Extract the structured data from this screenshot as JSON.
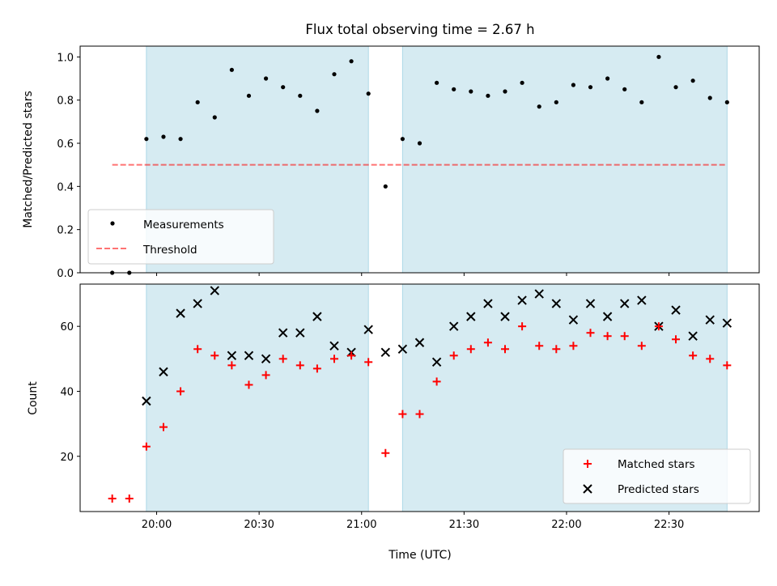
{
  "chart_data": {
    "type": "scatter",
    "title": "Flux total observing time = 2.67 h",
    "xlabel": "Time (UTC)",
    "x_tick_labels": [
      "20:00",
      "20:30",
      "21:00",
      "21:30",
      "22:00",
      "22:30"
    ],
    "times": [
      "19:47",
      "19:52",
      "19:57",
      "20:02",
      "20:07",
      "20:12",
      "20:17",
      "20:22",
      "20:27",
      "20:32",
      "20:37",
      "20:42",
      "20:47",
      "20:52",
      "20:57",
      "21:02",
      "21:07",
      "21:12",
      "21:17",
      "21:22",
      "21:27",
      "21:32",
      "21:37",
      "21:42",
      "21:47",
      "21:52",
      "21:57",
      "22:02",
      "22:07",
      "22:12",
      "22:17",
      "22:22",
      "22:27",
      "22:32",
      "22:37",
      "22:42",
      "22:47"
    ],
    "shaded_intervals": [
      [
        "19:57",
        "21:02"
      ],
      [
        "21:12",
        "22:47"
      ]
    ],
    "colors": {
      "shade": "#add8e6",
      "measurements": "#000000",
      "threshold": "#ff0000",
      "matched": "#ff0000",
      "predicted": "#000000"
    },
    "panels": [
      {
        "ylabel": "Matched/Predicted stars",
        "ylim": [
          0,
          1.05
        ],
        "yticks": [
          "0.0",
          "0.2",
          "0.4",
          "0.6",
          "0.8",
          "1.0"
        ],
        "grid": false,
        "legend_position": "lower-left",
        "series": [
          {
            "name": "Measurements",
            "marker": "dot",
            "values": [
              0.0,
              0.0,
              0.62,
              0.63,
              0.62,
              0.79,
              0.72,
              0.94,
              0.82,
              0.9,
              0.86,
              0.82,
              0.75,
              0.92,
              0.98,
              0.83,
              0.4,
              0.62,
              0.6,
              0.88,
              0.85,
              0.84,
              0.82,
              0.84,
              0.88,
              0.77,
              0.79,
              0.87,
              0.86,
              0.9,
              0.85,
              0.79,
              1.0,
              0.86,
              0.89,
              0.81,
              0.79
            ]
          },
          {
            "name": "Threshold",
            "marker": "dashed-line",
            "x_range": [
              "19:47",
              "22:47"
            ],
            "value": 0.5
          }
        ]
      },
      {
        "ylabel": "Count",
        "ylim": [
          3,
          73
        ],
        "yticks": [
          "20",
          "40",
          "60"
        ],
        "grid": false,
        "legend_position": "lower-right",
        "series": [
          {
            "name": "Matched stars",
            "marker": "plus",
            "values": [
              7,
              7,
              23,
              29,
              40,
              53,
              51,
              48,
              42,
              45,
              50,
              48,
              47,
              50,
              51,
              49,
              21,
              33,
              33,
              43,
              51,
              53,
              55,
              53,
              60,
              54,
              53,
              54,
              58,
              57,
              57,
              54,
              60,
              56,
              51,
              50,
              48
            ]
          },
          {
            "name": "Predicted stars",
            "marker": "x",
            "values": [
              null,
              null,
              37,
              46,
              64,
              67,
              71,
              51,
              51,
              50,
              58,
              58,
              63,
              54,
              52,
              59,
              52,
              53,
              55,
              49,
              60,
              63,
              67,
              63,
              68,
              70,
              67,
              62,
              67,
              63,
              67,
              68,
              60,
              65,
              57,
              62,
              61
            ]
          }
        ]
      }
    ]
  }
}
